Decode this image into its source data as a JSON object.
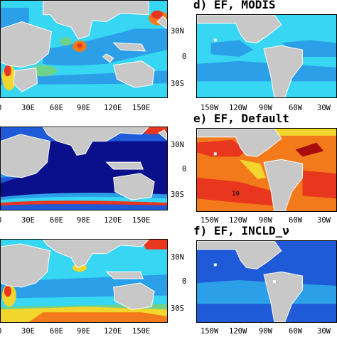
{
  "palette": {
    "land": "#c8c8c8",
    "coast": "#ffffff",
    "deep_blue": "#0a0f8c",
    "blue": "#1f5ad8",
    "light_blue": "#2b9fe8",
    "cyan": "#37d6f2",
    "green": "#6ed28a",
    "yellow": "#f2d62e",
    "orange": "#f27a1a",
    "red": "#e8361f",
    "dark_red": "#a80c0c"
  },
  "panels": [
    {
      "id": "a",
      "title": "",
      "region": "indian-ocean",
      "field_level": "mostly-cyan-green-with-red-coastal",
      "xticks": [
        "0",
        "30E",
        "60E",
        "90E",
        "120E",
        "150E"
      ],
      "yticks": []
    },
    {
      "id": "d",
      "title": "d) EF, MODIS",
      "region": "atlantic-americas",
      "field_level": "cyan-blue",
      "xticks": [
        "150W",
        "120W",
        "90W",
        "60W",
        "30W"
      ],
      "yticks": [
        "30N",
        "0",
        "30S"
      ]
    },
    {
      "id": "b",
      "title": "",
      "region": "indian-ocean",
      "field_level": "deep-blue-with-red-southern-band",
      "xticks": [
        "0",
        "30E",
        "60E",
        "90E",
        "120E",
        "150E"
      ],
      "yticks": []
    },
    {
      "id": "e",
      "title": "e) EF, Default",
      "region": "atlantic-americas",
      "field_level": "orange-red",
      "xticks": [
        "150W",
        "120W",
        "90W",
        "60W",
        "30W"
      ],
      "yticks": [
        "30N",
        "0",
        "30S"
      ],
      "annotation": "10"
    },
    {
      "id": "c",
      "title": "",
      "region": "indian-ocean",
      "field_level": "cyan-with-orange-coastal",
      "xticks": [
        "0",
        "30E",
        "60E",
        "90E",
        "120E",
        "150E"
      ],
      "yticks": []
    },
    {
      "id": "f",
      "title": "f) EF, INCLD_ν",
      "region": "atlantic-americas",
      "field_level": "blue",
      "xticks": [
        "150W",
        "120W",
        "90W",
        "60W",
        "30W"
      ],
      "yticks": [
        "30N",
        "0",
        "30S"
      ]
    }
  ]
}
